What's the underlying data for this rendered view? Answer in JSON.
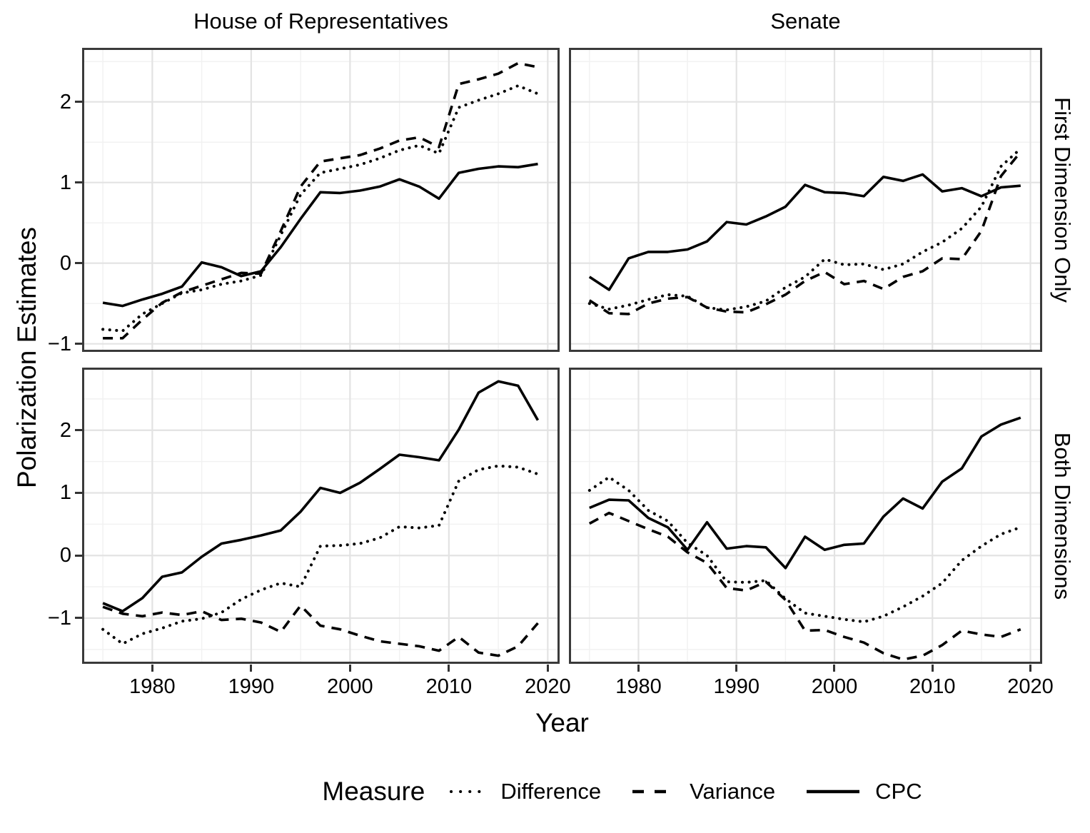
{
  "titles": {
    "col_left": "House of Representatives",
    "col_right": "Senate",
    "row_top": "First Dimension Only",
    "row_bottom": "Both Dimensions",
    "x_axis": "Year",
    "y_axis": "Polarization Estimates"
  },
  "legend": {
    "title": "Measure",
    "items": [
      {
        "label": "Difference",
        "linetype": "dotted"
      },
      {
        "label": "Variance",
        "linetype": "dashed"
      },
      {
        "label": "CPC",
        "linetype": "solid"
      }
    ]
  },
  "axes": {
    "x_ticks": [
      1980,
      1990,
      2000,
      2010,
      2020
    ],
    "x_minor": [
      1975,
      1985,
      1995,
      2005,
      2015
    ],
    "x_domain": [
      1972.9,
      2021.2
    ],
    "rows": [
      {
        "y_ticks": [
          -1,
          0,
          1,
          2
        ],
        "y_minor": [
          -0.5,
          0.5,
          1.5,
          2.5
        ],
        "y_domain": [
          -1.1,
          2.67
        ]
      },
      {
        "y_ticks": [
          -1,
          0,
          1,
          2
        ],
        "y_minor": [
          -1.5,
          -0.5,
          0.5,
          1.5,
          2.5
        ],
        "y_domain": [
          -1.73,
          3.0
        ]
      }
    ]
  },
  "colors": {
    "line": "#000000",
    "panel_border": "#3a3a3a",
    "grid_major": "#e3e3e3",
    "grid_minor": "#f1f1f1",
    "tick": "#333333",
    "text": "#000000",
    "background": "#ffffff"
  },
  "chart_data": [
    {
      "type": "line",
      "facet_col": "House of Representatives",
      "facet_row": "First Dimension Only",
      "xlabel": "Year",
      "ylabel": "Polarization Estimates",
      "grid": true,
      "legend_position": "bottom",
      "x": [
        1975,
        1977,
        1979,
        1981,
        1983,
        1985,
        1987,
        1989,
        1991,
        1993,
        1995,
        1997,
        1999,
        2001,
        2003,
        2005,
        2007,
        2009,
        2011,
        2013,
        2015,
        2017,
        2019
      ],
      "series": [
        {
          "name": "Difference",
          "linetype": "dotted",
          "values": [
            -0.82,
            -0.84,
            -0.63,
            -0.5,
            -0.37,
            -0.33,
            -0.26,
            -0.22,
            -0.15,
            0.35,
            0.85,
            1.12,
            1.17,
            1.22,
            1.3,
            1.4,
            1.46,
            1.36,
            1.93,
            2.02,
            2.1,
            2.2,
            2.1
          ]
        },
        {
          "name": "Variance",
          "linetype": "dashed",
          "values": [
            -0.93,
            -0.93,
            -0.7,
            -0.49,
            -0.36,
            -0.28,
            -0.2,
            -0.12,
            -0.13,
            0.4,
            0.95,
            1.26,
            1.3,
            1.34,
            1.42,
            1.52,
            1.56,
            1.44,
            2.22,
            2.28,
            2.35,
            2.48,
            2.43
          ]
        },
        {
          "name": "CPC",
          "linetype": "solid",
          "values": [
            -0.49,
            -0.53,
            -0.45,
            -0.38,
            -0.29,
            0.01,
            -0.05,
            -0.16,
            -0.1,
            0.2,
            0.55,
            0.88,
            0.87,
            0.9,
            0.95,
            1.04,
            0.95,
            0.8,
            1.12,
            1.17,
            1.2,
            1.19,
            1.23
          ]
        }
      ]
    },
    {
      "type": "line",
      "facet_col": "Senate",
      "facet_row": "First Dimension Only",
      "xlabel": "Year",
      "ylabel": "Polarization Estimates",
      "grid": true,
      "legend_position": "bottom",
      "x": [
        1975,
        1977,
        1979,
        1981,
        1983,
        1985,
        1987,
        1989,
        1991,
        1993,
        1995,
        1997,
        1999,
        2001,
        2003,
        2005,
        2007,
        2009,
        2011,
        2013,
        2015,
        2017,
        2019
      ],
      "series": [
        {
          "name": "Difference",
          "linetype": "dotted",
          "values": [
            -0.5,
            -0.57,
            -0.52,
            -0.45,
            -0.39,
            -0.41,
            -0.55,
            -0.58,
            -0.54,
            -0.47,
            -0.3,
            -0.17,
            0.05,
            -0.02,
            -0.01,
            -0.08,
            -0.01,
            0.14,
            0.26,
            0.43,
            0.7,
            1.2,
            1.42
          ]
        },
        {
          "name": "Variance",
          "linetype": "dashed",
          "values": [
            -0.46,
            -0.62,
            -0.63,
            -0.5,
            -0.44,
            -0.42,
            -0.55,
            -0.6,
            -0.61,
            -0.51,
            -0.39,
            -0.22,
            -0.11,
            -0.26,
            -0.22,
            -0.32,
            -0.17,
            -0.1,
            0.06,
            0.05,
            0.4,
            1.08,
            1.38
          ]
        },
        {
          "name": "CPC",
          "linetype": "solid",
          "values": [
            -0.17,
            -0.33,
            0.06,
            0.14,
            0.14,
            0.17,
            0.27,
            0.51,
            0.48,
            0.58,
            0.7,
            0.97,
            0.88,
            0.87,
            0.83,
            1.07,
            1.02,
            1.1,
            0.89,
            0.93,
            0.83,
            0.94,
            0.96
          ]
        }
      ]
    },
    {
      "type": "line",
      "facet_col": "House of Representatives",
      "facet_row": "Both Dimensions",
      "xlabel": "Year",
      "ylabel": "Polarization Estimates",
      "grid": true,
      "legend_position": "bottom",
      "x": [
        1975,
        1977,
        1979,
        1981,
        1983,
        1985,
        1987,
        1989,
        1991,
        1993,
        1995,
        1997,
        1999,
        2001,
        2003,
        2005,
        2007,
        2009,
        2011,
        2013,
        2015,
        2017,
        2019
      ],
      "series": [
        {
          "name": "Difference",
          "linetype": "dotted",
          "values": [
            -1.18,
            -1.41,
            -1.25,
            -1.16,
            -1.05,
            -1.01,
            -0.91,
            -0.7,
            -0.55,
            -0.44,
            -0.5,
            0.15,
            0.16,
            0.19,
            0.28,
            0.46,
            0.44,
            0.48,
            1.19,
            1.37,
            1.43,
            1.41,
            1.3
          ]
        },
        {
          "name": "Variance",
          "linetype": "dashed",
          "values": [
            -0.82,
            -0.93,
            -0.97,
            -0.91,
            -0.95,
            -0.89,
            -1.03,
            -1.01,
            -1.07,
            -1.22,
            -0.8,
            -1.12,
            -1.18,
            -1.28,
            -1.37,
            -1.41,
            -1.45,
            -1.52,
            -1.3,
            -1.55,
            -1.6,
            -1.45,
            -1.08
          ]
        },
        {
          "name": "CPC",
          "linetype": "solid",
          "values": [
            -0.76,
            -0.89,
            -0.68,
            -0.34,
            -0.27,
            -0.02,
            0.19,
            0.25,
            0.32,
            0.4,
            0.7,
            1.08,
            1.0,
            1.16,
            1.38,
            1.61,
            1.57,
            1.52,
            2.01,
            2.6,
            2.78,
            2.71,
            2.16
          ]
        }
      ]
    },
    {
      "type": "line",
      "facet_col": "Senate",
      "facet_row": "Both Dimensions",
      "xlabel": "Year",
      "ylabel": "Polarization Estimates",
      "grid": true,
      "legend_position": "bottom",
      "x": [
        1975,
        1977,
        1979,
        1981,
        1983,
        1985,
        1987,
        1989,
        1991,
        1993,
        1995,
        1997,
        1999,
        2001,
        2003,
        2005,
        2007,
        2009,
        2011,
        2013,
        2015,
        2017,
        2019
      ],
      "series": [
        {
          "name": "Difference",
          "linetype": "dotted",
          "values": [
            1.04,
            1.25,
            1.04,
            0.72,
            0.55,
            0.2,
            0.0,
            -0.42,
            -0.43,
            -0.4,
            -0.69,
            -0.92,
            -0.97,
            -1.02,
            -1.06,
            -0.97,
            -0.82,
            -0.65,
            -0.44,
            -0.08,
            0.15,
            0.34,
            0.45
          ]
        },
        {
          "name": "Variance",
          "linetype": "dashed",
          "values": [
            0.51,
            0.68,
            0.55,
            0.42,
            0.3,
            0.05,
            -0.12,
            -0.52,
            -0.56,
            -0.42,
            -0.71,
            -1.2,
            -1.19,
            -1.3,
            -1.39,
            -1.56,
            -1.66,
            -1.6,
            -1.43,
            -1.2,
            -1.26,
            -1.3,
            -1.18
          ]
        },
        {
          "name": "CPC",
          "linetype": "solid",
          "values": [
            0.76,
            0.89,
            0.88,
            0.6,
            0.45,
            0.09,
            0.53,
            0.11,
            0.15,
            0.13,
            -0.2,
            0.3,
            0.09,
            0.17,
            0.19,
            0.62,
            0.91,
            0.75,
            1.18,
            1.39,
            1.9,
            2.09,
            2.2
          ]
        }
      ]
    }
  ]
}
